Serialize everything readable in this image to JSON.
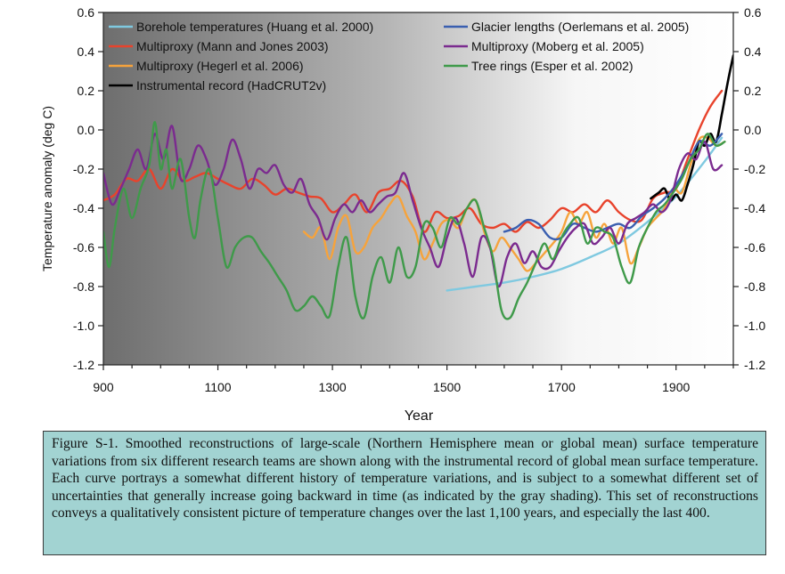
{
  "chart_data": {
    "type": "line",
    "title": "",
    "xlabel": "Year",
    "ylabel": "Temperature anomaly (deg C)",
    "xlim": [
      900,
      2000
    ],
    "ylim": [
      -1.2,
      0.6
    ],
    "x_ticks": [
      900,
      1100,
      1300,
      1500,
      1700,
      1900
    ],
    "x_tick_labels": [
      "900",
      "1100",
      "1300",
      "1500",
      "1700",
      "1900"
    ],
    "y_ticks": [
      0.6,
      0.4,
      0.2,
      0.0,
      -0.2,
      -0.4,
      -0.6,
      -0.8,
      -1.0,
      -1.2
    ],
    "y_tick_labels": [
      "0.6",
      "0.4",
      "0.2",
      "0.0",
      "-0.2",
      "-0.4",
      "-0.6",
      "-0.8",
      "-1.0",
      "-1.2"
    ],
    "legend_position": "top",
    "background": "gray shading, darkest at left (early years), fading to white by about 1650",
    "series": [
      {
        "name": "Borehole temperatures (Huang et al. 2000)",
        "color": "#7fc9e0",
        "x": [
          1500,
          1550,
          1600,
          1650,
          1700,
          1750,
          1800,
          1850,
          1900,
          1950,
          1980
        ],
        "y": [
          -0.82,
          -0.8,
          -0.78,
          -0.75,
          -0.71,
          -0.65,
          -0.58,
          -0.47,
          -0.34,
          -0.16,
          -0.04
        ]
      },
      {
        "name": "Multiproxy (Mann and Jones 2003)",
        "color": "#e8432c",
        "x": [
          900,
          920,
          940,
          960,
          980,
          1000,
          1020,
          1040,
          1060,
          1080,
          1100,
          1120,
          1140,
          1160,
          1180,
          1200,
          1220,
          1240,
          1260,
          1280,
          1300,
          1320,
          1340,
          1360,
          1380,
          1400,
          1420,
          1440,
          1460,
          1480,
          1500,
          1520,
          1540,
          1560,
          1580,
          1600,
          1620,
          1640,
          1660,
          1680,
          1700,
          1720,
          1740,
          1760,
          1780,
          1800,
          1820,
          1840,
          1860,
          1880,
          1900,
          1920,
          1940,
          1960,
          1980
        ],
        "y": [
          -0.36,
          -0.33,
          -0.25,
          -0.26,
          -0.2,
          -0.3,
          -0.2,
          -0.26,
          -0.24,
          -0.22,
          -0.25,
          -0.28,
          -0.3,
          -0.25,
          -0.28,
          -0.33,
          -0.3,
          -0.32,
          -0.34,
          -0.35,
          -0.42,
          -0.38,
          -0.33,
          -0.42,
          -0.32,
          -0.3,
          -0.26,
          -0.34,
          -0.52,
          -0.42,
          -0.45,
          -0.44,
          -0.4,
          -0.48,
          -0.5,
          -0.48,
          -0.52,
          -0.47,
          -0.5,
          -0.46,
          -0.4,
          -0.42,
          -0.38,
          -0.42,
          -0.36,
          -0.42,
          -0.46,
          -0.46,
          -0.35,
          -0.32,
          -0.3,
          -0.15,
          0.0,
          0.12,
          0.2
        ]
      },
      {
        "name": "Multiproxy (Hegerl et al. 2006)",
        "color": "#f6a33c",
        "x": [
          1250,
          1265,
          1280,
          1295,
          1310,
          1325,
          1340,
          1355,
          1370,
          1385,
          1400,
          1415,
          1430,
          1445,
          1460,
          1475,
          1490,
          1505,
          1520,
          1535,
          1550,
          1565,
          1580,
          1595,
          1610,
          1625,
          1640,
          1655,
          1670,
          1685,
          1700,
          1715,
          1730,
          1745,
          1760,
          1775,
          1790,
          1805,
          1820,
          1835,
          1850,
          1865,
          1880,
          1895,
          1910,
          1925,
          1940,
          1955,
          1970,
          1985
        ],
        "y": [
          -0.52,
          -0.55,
          -0.5,
          -0.66,
          -0.5,
          -0.44,
          -0.62,
          -0.6,
          -0.5,
          -0.45,
          -0.38,
          -0.34,
          -0.44,
          -0.52,
          -0.66,
          -0.58,
          -0.48,
          -0.46,
          -0.5,
          -0.4,
          -0.36,
          -0.52,
          -0.62,
          -0.55,
          -0.6,
          -0.66,
          -0.72,
          -0.68,
          -0.63,
          -0.58,
          -0.52,
          -0.42,
          -0.48,
          -0.42,
          -0.55,
          -0.48,
          -0.58,
          -0.5,
          -0.68,
          -0.6,
          -0.5,
          -0.45,
          -0.4,
          -0.3,
          -0.32,
          -0.18,
          -0.05,
          -0.04,
          -0.08,
          -0.06
        ]
      },
      {
        "name": "Instrumental record (HadCRUT2v)",
        "color": "#000000",
        "x": [
          1856,
          1870,
          1880,
          1890,
          1900,
          1910,
          1920,
          1930,
          1940,
          1950,
          1960,
          1970,
          1980,
          1990,
          2000
        ],
        "y": [
          -0.35,
          -0.32,
          -0.3,
          -0.36,
          -0.33,
          -0.36,
          -0.28,
          -0.18,
          -0.06,
          -0.08,
          -0.02,
          -0.06,
          0.08,
          0.24,
          0.38
        ]
      },
      {
        "name": "Glacier lengths (Oerlemans et al. 2005)",
        "color": "#3a5fb0",
        "x": [
          1600,
          1620,
          1640,
          1660,
          1680,
          1700,
          1720,
          1740,
          1760,
          1780,
          1800,
          1820,
          1840,
          1860,
          1880,
          1900,
          1920,
          1940,
          1960,
          1980
        ],
        "y": [
          -0.52,
          -0.5,
          -0.46,
          -0.48,
          -0.55,
          -0.55,
          -0.48,
          -0.5,
          -0.52,
          -0.5,
          -0.48,
          -0.5,
          -0.44,
          -0.4,
          -0.35,
          -0.28,
          -0.18,
          -0.06,
          -0.08,
          -0.02
        ]
      },
      {
        "name": "Multiproxy (Moberg et al. 2005)",
        "color": "#7b2b8f",
        "x": [
          900,
          915,
          930,
          945,
          960,
          975,
          990,
          1005,
          1020,
          1035,
          1050,
          1065,
          1080,
          1095,
          1110,
          1125,
          1140,
          1155,
          1170,
          1185,
          1200,
          1215,
          1230,
          1245,
          1260,
          1275,
          1290,
          1305,
          1320,
          1335,
          1350,
          1365,
          1380,
          1395,
          1410,
          1425,
          1440,
          1455,
          1470,
          1485,
          1500,
          1515,
          1530,
          1545,
          1560,
          1575,
          1590,
          1605,
          1620,
          1635,
          1650,
          1665,
          1680,
          1695,
          1710,
          1725,
          1740,
          1755,
          1770,
          1785,
          1800,
          1815,
          1830,
          1845,
          1860,
          1875,
          1890,
          1905,
          1920,
          1935,
          1950,
          1965,
          1980
        ],
        "y": [
          -0.22,
          -0.38,
          -0.3,
          -0.2,
          -0.1,
          -0.2,
          -0.02,
          -0.15,
          0.02,
          -0.25,
          -0.2,
          -0.08,
          -0.15,
          -0.28,
          -0.2,
          -0.05,
          -0.15,
          -0.3,
          -0.2,
          -0.22,
          -0.18,
          -0.28,
          -0.32,
          -0.25,
          -0.38,
          -0.45,
          -0.56,
          -0.45,
          -0.38,
          -0.42,
          -0.36,
          -0.42,
          -0.38,
          -0.34,
          -0.32,
          -0.22,
          -0.36,
          -0.5,
          -0.6,
          -0.7,
          -0.55,
          -0.45,
          -0.58,
          -0.75,
          -0.55,
          -0.6,
          -0.8,
          -0.65,
          -0.58,
          -0.68,
          -0.62,
          -0.7,
          -0.7,
          -0.62,
          -0.55,
          -0.5,
          -0.48,
          -0.58,
          -0.55,
          -0.5,
          -0.58,
          -0.48,
          -0.45,
          -0.42,
          -0.38,
          -0.42,
          -0.36,
          -0.2,
          -0.12,
          -0.15,
          -0.06,
          -0.2,
          -0.18
        ]
      },
      {
        "name": "Tree rings (Esper et al. 2002)",
        "color": "#3f9a4a",
        "x": [
          900,
          910,
          920,
          935,
          950,
          965,
          980,
          990,
          1000,
          1010,
          1020,
          1035,
          1050,
          1060,
          1070,
          1085,
          1100,
          1115,
          1130,
          1145,
          1160,
          1175,
          1190,
          1205,
          1220,
          1235,
          1250,
          1265,
          1280,
          1295,
          1310,
          1325,
          1340,
          1355,
          1370,
          1385,
          1400,
          1415,
          1430,
          1445,
          1460,
          1475,
          1490,
          1505,
          1520,
          1535,
          1550,
          1565,
          1580,
          1595,
          1610,
          1625,
          1640,
          1655,
          1670,
          1685,
          1700,
          1715,
          1730,
          1745,
          1760,
          1775,
          1790,
          1805,
          1820,
          1835,
          1850,
          1865,
          1880,
          1895,
          1910,
          1925,
          1940,
          1955,
          1970,
          1985
        ],
        "y": [
          -0.52,
          -0.7,
          -0.5,
          -0.3,
          -0.45,
          -0.3,
          -0.18,
          0.04,
          -0.2,
          -0.1,
          -0.3,
          -0.15,
          -0.45,
          -0.55,
          -0.35,
          -0.2,
          -0.45,
          -0.7,
          -0.6,
          -0.55,
          -0.55,
          -0.62,
          -0.68,
          -0.75,
          -0.82,
          -0.92,
          -0.9,
          -0.85,
          -0.9,
          -0.95,
          -0.7,
          -0.55,
          -0.85,
          -0.96,
          -0.75,
          -0.65,
          -0.78,
          -0.6,
          -0.75,
          -0.7,
          -0.48,
          -0.5,
          -0.6,
          -0.45,
          -0.48,
          -0.4,
          -0.36,
          -0.5,
          -0.65,
          -0.92,
          -0.96,
          -0.86,
          -0.78,
          -0.68,
          -0.58,
          -0.66,
          -0.55,
          -0.48,
          -0.45,
          -0.58,
          -0.5,
          -0.52,
          -0.55,
          -0.7,
          -0.78,
          -0.6,
          -0.5,
          -0.42,
          -0.38,
          -0.32,
          -0.25,
          -0.15,
          -0.1,
          -0.02,
          -0.08,
          -0.06
        ]
      }
    ]
  },
  "caption": "Figure S-1.  Smoothed reconstructions of large-scale (Northern Hemisphere mean or global mean) surface temperature variations from six different research teams are shown along with the instrumental record of global mean surface temperature.  Each curve portrays a somewhat different history of temperature variations, and is subject to a somewhat different set of uncertainties that generally increase going backward in time (as indicated by the gray shading).  This set of reconstructions conveys a qualitatively consistent picture of temperature changes over the last 1,100 years, and especially the last 400.",
  "colors": {
    "caption_background": "#a2d3d2",
    "axis": "#222222"
  }
}
